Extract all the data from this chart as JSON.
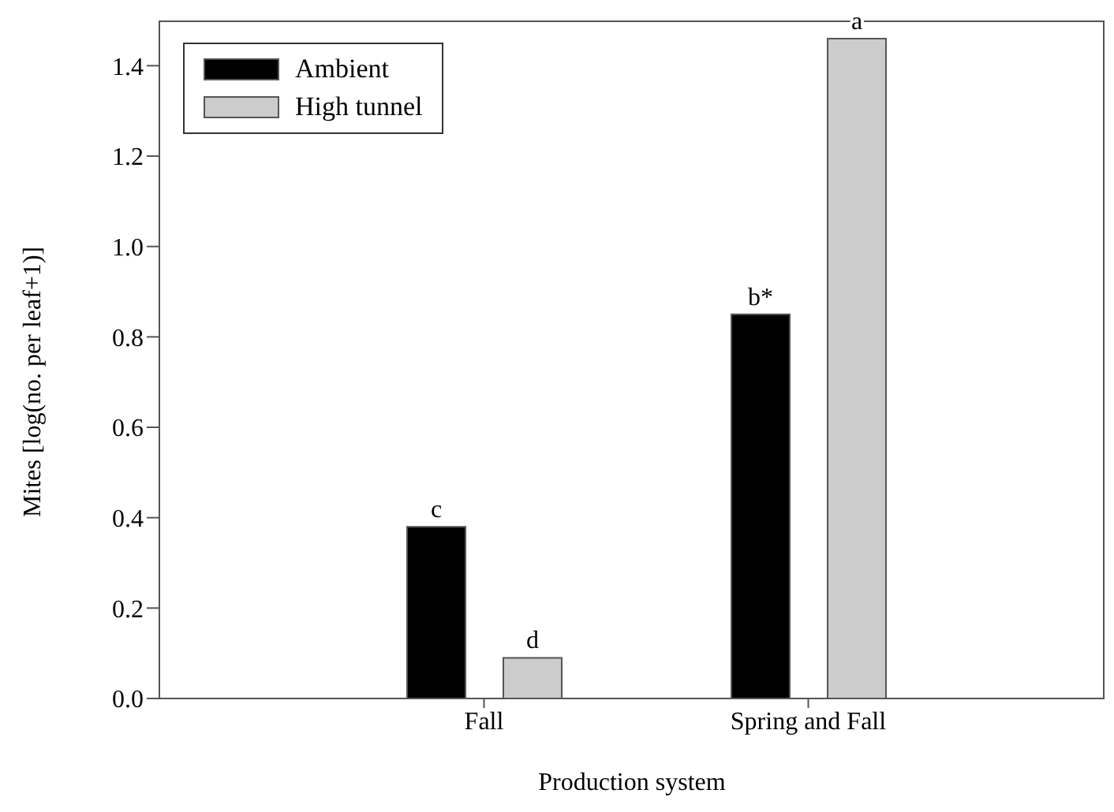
{
  "chart_data": {
    "type": "bar",
    "xlabel": "Production system",
    "ylabel": "Mites [log(no. per leaf+1)]",
    "categories": [
      "Fall",
      "Spring and Fall"
    ],
    "series": [
      {
        "name": "Ambient",
        "color": "#000000",
        "values": [
          0.38,
          0.85
        ],
        "value_labels": [
          "c",
          "b*"
        ]
      },
      {
        "name": "High tunnel",
        "color": "#cccccc",
        "values": [
          0.09,
          1.46
        ],
        "value_labels": [
          "d",
          "a"
        ]
      }
    ],
    "ylim": [
      0,
      1.5
    ],
    "yticks": [
      {
        "value": 0,
        "label": "0.0"
      },
      0.2,
      0.4,
      0.6,
      0.8,
      {
        "value": 1,
        "label": "1.0"
      },
      1.2,
      1.4
    ],
    "grid": false,
    "legend": "top left"
  }
}
